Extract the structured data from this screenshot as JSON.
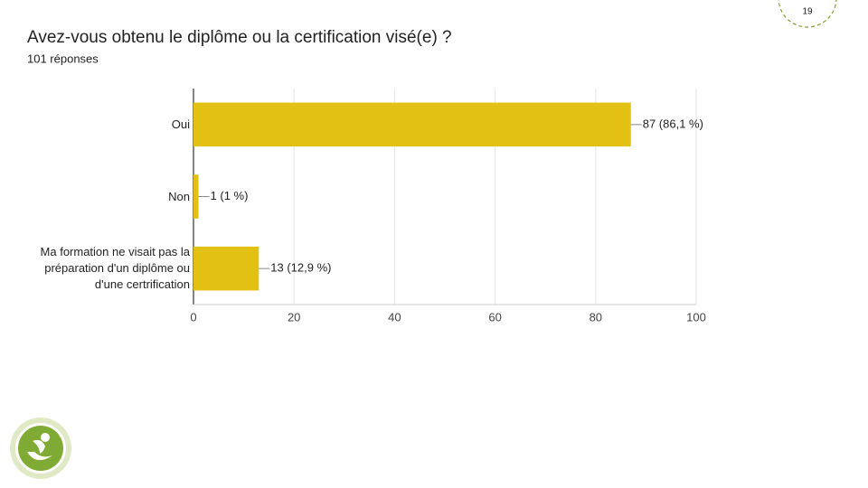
{
  "page_number": "19",
  "chart_data": {
    "type": "hbar",
    "title": "Avez-vous obtenu le diplôme ou la certification visé(e) ?",
    "subtitle": "101 réponses",
    "categories": [
      "Oui",
      "Non",
      "Ma formation ne visait pas la préparation d'un diplôme ou d'une certrification"
    ],
    "values": [
      87,
      1,
      13
    ],
    "value_labels": [
      "87 (86,1 %)",
      "1 (1 %)",
      "13 (12,9 %)"
    ],
    "color": "#e2c114",
    "xlim": [
      0,
      100
    ],
    "xticks": [
      0,
      20,
      40,
      60,
      80,
      100
    ],
    "grid": true
  }
}
